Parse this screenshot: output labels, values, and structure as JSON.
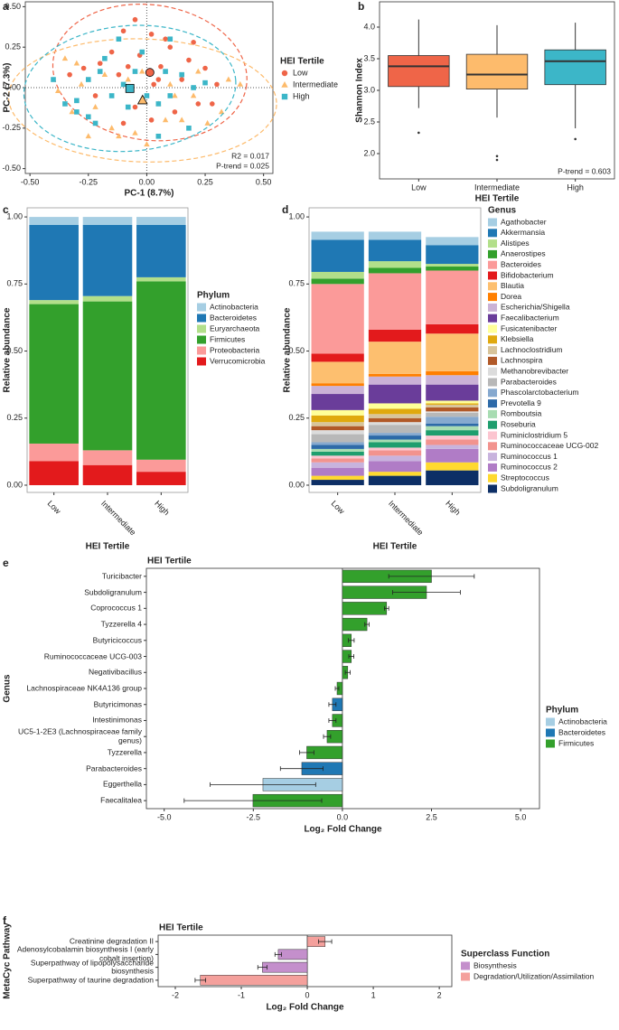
{
  "chart_data": [
    {
      "panel": "a",
      "type": "scatter",
      "xlabel": "PC-1 (8.7%)",
      "ylabel": "PC-2 (7.3%)",
      "xlim": [
        -0.52,
        0.54
      ],
      "ylim": [
        -0.53,
        0.53
      ],
      "xticks": [
        {
          "value": -0.5,
          "label": "-0.50"
        },
        {
          "value": -0.25,
          "label": "-0.25"
        },
        {
          "value": 0,
          "label": "0.00"
        },
        {
          "value": 0.25,
          "label": "0.25"
        },
        {
          "value": 0.5,
          "label": "0.50"
        }
      ],
      "yticks": [
        {
          "value": -0.5,
          "label": "-0.50"
        },
        {
          "value": -0.25,
          "label": "-0.25"
        },
        {
          "value": 0,
          "label": "0.00"
        },
        {
          "value": 0.25,
          "label": "0.25"
        },
        {
          "value": 0.5,
          "label": "0.50"
        }
      ],
      "legend_title": "HEI Tertile",
      "annotations": [
        "R2 = 0.017",
        "P-trend = 0.025"
      ],
      "series": [
        {
          "name": "Low",
          "color": "#ef6548",
          "marker": "circle",
          "x": [
            -0.1,
            -0.05,
            0.02,
            0.08,
            0.1,
            0.2,
            0.25,
            0.3,
            0.15,
            0.05,
            0.03,
            -0.03,
            -0.15,
            -0.2,
            -0.27,
            -0.33,
            -0.22,
            -0.12,
            -0.05,
            0.02,
            0.12,
            0.22,
            0.28,
            -0.1,
            0.18,
            -0.08,
            0.06
          ],
          "y": [
            0.35,
            0.42,
            0.33,
            0.3,
            0.25,
            0.28,
            0.12,
            0.02,
            0.05,
            0.05,
            0.02,
            0.2,
            0.22,
            0.15,
            0.12,
            0.08,
            -0.05,
            0.08,
            -0.12,
            -0.2,
            -0.15,
            -0.1,
            -0.1,
            -0.22,
            0.17,
            0.13,
            0.13
          ]
        },
        {
          "name": "Intermediate",
          "color": "#fdbb6c",
          "marker": "triangle",
          "x": [
            -0.35,
            -0.3,
            -0.38,
            -0.32,
            -0.25,
            -0.15,
            -0.12,
            -0.05,
            0,
            0.08,
            0.15,
            0.2,
            0.22,
            0.35,
            0.4,
            0.32,
            0.1,
            -0.02,
            -0.08,
            -0.18,
            -0.22,
            0.05,
            0.12,
            0.26,
            -0.28
          ],
          "y": [
            0.18,
            0.15,
            -0.02,
            -0.15,
            -0.3,
            -0.25,
            -0.3,
            -0.28,
            -0.35,
            -0.2,
            -0.2,
            -0.05,
            0.1,
            0.05,
            0.02,
            -0.15,
            0.02,
            0.1,
            0.05,
            0.08,
            -0.12,
            -0.1,
            -0.05,
            -0.22,
            0.02
          ]
        },
        {
          "name": "High",
          "color": "#3cb6c8",
          "marker": "square",
          "x": [
            -0.4,
            -0.35,
            -0.3,
            -0.25,
            -0.22,
            -0.18,
            -0.15,
            -0.1,
            -0.08,
            -0.05,
            0,
            0.05,
            0.1,
            0.15,
            0.2,
            0.25,
            -0.02,
            0.1,
            -0.12,
            -0.3,
            0.05,
            -0.25,
            -0.2,
            0.18,
            0.08
          ],
          "y": [
            0.05,
            -0.1,
            -0.15,
            0.05,
            -0.22,
            0.18,
            -0.05,
            0.02,
            -0.12,
            0.1,
            -0.05,
            -0.1,
            -0.05,
            0.08,
            0,
            0.03,
            0.22,
            0.3,
            0.3,
            -0.08,
            -0.3,
            -0.18,
            0.1,
            -0.25,
            0.1
          ]
        }
      ]
    },
    {
      "panel": "b",
      "type": "box",
      "xlabel": "HEI Tertile",
      "ylabel": "Shannon Index",
      "categories": [
        "Low",
        "Intermediate",
        "High"
      ],
      "colors": [
        "#ef6548",
        "#fdbb6c",
        "#3cb6c8"
      ],
      "ylim": [
        1.6,
        4.4
      ],
      "yticks": [
        {
          "value": 2,
          "label": "2.0"
        },
        2.5,
        {
          "value": 3,
          "label": "3.0"
        },
        3.5,
        {
          "value": 4,
          "label": "4.0"
        }
      ],
      "boxes": [
        {
          "min": 2.72,
          "q1": 3.06,
          "median": 3.38,
          "q3": 3.55,
          "max": 4.12,
          "outliers": [
            2.33
          ]
        },
        {
          "min": 2.57,
          "q1": 3.02,
          "median": 3.25,
          "q3": 3.57,
          "max": 4.03,
          "outliers": [
            1.96,
            1.9
          ]
        },
        {
          "min": 2.4,
          "q1": 3.09,
          "median": 3.46,
          "q3": 3.64,
          "max": 4.07,
          "outliers": [
            2.23
          ]
        }
      ],
      "annotations": [
        "P-trend = 0.603"
      ]
    },
    {
      "panel": "c",
      "type": "stacked_bar",
      "xlabel": "HEI Tertile",
      "ylabel": "Relative abundance",
      "categories": [
        "Low",
        "Intermediate",
        "High"
      ],
      "ylim": [
        -0.027,
        1.034
      ],
      "yticks": [
        {
          "value": 0,
          "label": "0.00"
        },
        {
          "value": 0.25,
          "label": "0.25"
        },
        {
          "value": 0.5,
          "label": "0.50"
        },
        {
          "value": 0.75,
          "label": "0.75"
        },
        {
          "value": 1,
          "label": "1.00"
        }
      ],
      "legend_title": "Phylum",
      "series": [
        {
          "name": "Actinobacteria",
          "color": "#a6cee3",
          "values": [
            0.03,
            0.03,
            0.03
          ]
        },
        {
          "name": "Bacteroidetes",
          "color": "#1f78b4",
          "values": [
            0.28,
            0.265,
            0.195
          ]
        },
        {
          "name": "Euryarchaeota",
          "color": "#b2df8a",
          "values": [
            0.015,
            0.02,
            0.015
          ]
        },
        {
          "name": "Firmicutes",
          "color": "#33a02c",
          "values": [
            0.52,
            0.555,
            0.665
          ]
        },
        {
          "name": "Proteobacteria",
          "color": "#fb9a99",
          "values": [
            0.065,
            0.055,
            0.045
          ]
        },
        {
          "name": "Verrucomicrobia",
          "color": "#e31a1c",
          "values": [
            0.09,
            0.075,
            0.05
          ]
        }
      ]
    },
    {
      "panel": "d",
      "type": "stacked_bar",
      "xlabel": "HEI Tertile",
      "ylabel": "Relative abundance",
      "categories": [
        "Low",
        "Intermediate",
        "High"
      ],
      "ylim": [
        -0.027,
        1.034
      ],
      "yticks": [
        {
          "value": 0,
          "label": "0.00"
        },
        {
          "value": 0.25,
          "label": "0.25"
        },
        {
          "value": 0.5,
          "label": "0.50"
        },
        {
          "value": 0.75,
          "label": "0.75"
        },
        {
          "value": 1,
          "label": "1.00"
        }
      ],
      "legend_title": "Genus",
      "series": [
        {
          "name": "Agathobacter",
          "color": "#a6cee3",
          "values": [
            0.03,
            0.03,
            0.03
          ]
        },
        {
          "name": "Akkermansia",
          "color": "#1f78b4",
          "values": [
            0.12,
            0.08,
            0.07
          ]
        },
        {
          "name": "Alistipes",
          "color": "#b2df8a",
          "values": [
            0.025,
            0.025,
            0.01
          ]
        },
        {
          "name": "Anaerostipes",
          "color": "#33a02c",
          "values": [
            0.02,
            0.02,
            0.015
          ]
        },
        {
          "name": "Bacteroides",
          "color": "#fb9a99",
          "values": [
            0.26,
            0.21,
            0.2
          ]
        },
        {
          "name": "Bifidobacterium",
          "color": "#e31a1c",
          "values": [
            0.03,
            0.045,
            0.035
          ]
        },
        {
          "name": "Blautia",
          "color": "#fdbf6f",
          "values": [
            0.08,
            0.12,
            0.14
          ]
        },
        {
          "name": "Dorea",
          "color": "#ff7f00",
          "values": [
            0.01,
            0.01,
            0.015
          ]
        },
        {
          "name": "Escherichia/Shigella",
          "color": "#cab2d6",
          "values": [
            0.03,
            0.03,
            0.035
          ]
        },
        {
          "name": "Faecalibacterium",
          "color": "#6a3d9a",
          "values": [
            0.06,
            0.07,
            0.06
          ]
        },
        {
          "name": "Fusicatenibacter",
          "color": "#ffff99",
          "values": [
            0.02,
            0.02,
            0.01
          ]
        },
        {
          "name": "Klebsiella",
          "color": "#e0a90e",
          "values": [
            0.025,
            0.02,
            0.005
          ]
        },
        {
          "name": "Lachnoclostridium",
          "color": "#d8c49a",
          "values": [
            0.015,
            0.015,
            0.01
          ]
        },
        {
          "name": "Lachnospira",
          "color": "#b15928",
          "values": [
            0.015,
            0.015,
            0.015
          ]
        },
        {
          "name": "Methanobrevibacter",
          "color": "#dcdcdc",
          "values": [
            0.015,
            0.01,
            0.005
          ]
        },
        {
          "name": "Parabacteroides",
          "color": "#b8b8b8",
          "values": [
            0.03,
            0.03,
            0.015
          ]
        },
        {
          "name": "Phascolarctobacterium",
          "color": "#86a9cf",
          "values": [
            0.01,
            0.01,
            0.025
          ]
        },
        {
          "name": "Prevotella 9",
          "color": "#2d6aa8",
          "values": [
            0.015,
            0.015,
            0.01
          ]
        },
        {
          "name": "Romboutsia",
          "color": "#a8dcb2",
          "values": [
            0.01,
            0.01,
            0.015
          ]
        },
        {
          "name": "Roseburia",
          "color": "#1f9e6e",
          "values": [
            0.015,
            0.02,
            0.02
          ]
        },
        {
          "name": "Ruminiclostridium 5",
          "color": "#fcc5d0",
          "values": [
            0.01,
            0.01,
            0.015
          ]
        },
        {
          "name": "Ruminococcaceae UCG-002",
          "color": "#f2938e",
          "values": [
            0.015,
            0.02,
            0.02
          ]
        },
        {
          "name": "Ruminococcus 1",
          "color": "#c8b3dd",
          "values": [
            0.02,
            0.02,
            0.015
          ]
        },
        {
          "name": "Ruminococcus 2",
          "color": "#b07cc6",
          "values": [
            0.03,
            0.04,
            0.05
          ]
        },
        {
          "name": "Streptococcus",
          "color": "#ffd92f",
          "values": [
            0.015,
            0.015,
            0.03
          ]
        },
        {
          "name": "Subdoligranulum",
          "color": "#0d2f66",
          "values": [
            0.02,
            0.035,
            0.055
          ]
        }
      ]
    },
    {
      "panel": "e",
      "type": "hbar",
      "title": "HEI Tertile",
      "xlabel": "Log₂ Fold Change",
      "ylabel": "Genus",
      "xlim": [
        -5.5,
        5.53
      ],
      "xticks": [
        {
          "value": -5,
          "label": "-5.0"
        },
        -2.5,
        {
          "value": 0,
          "label": "0.0"
        },
        2.5,
        {
          "value": 5,
          "label": "5.0"
        }
      ],
      "categories": [
        "Turicibacter",
        "Subdoligranulum",
        "Coprococcus 1",
        "Tyzzerella 4",
        "Butyricicoccus",
        "Ruminococcaceae UCG-003",
        "Negativibacillus",
        "Lachnospiraceae NK4A136 group",
        "Butyricimonas",
        "Intestinimonas",
        "UC5-1-2E3 (Lachnospiraceae family genus)",
        "Tyzzerella",
        "Parabacteroides",
        "Eggerthella",
        "Faecalitalea"
      ],
      "values": [
        2.5,
        2.36,
        1.24,
        0.69,
        0.25,
        0.25,
        0.15,
        -0.15,
        -0.28,
        -0.28,
        -0.43,
        -1.0,
        -1.14,
        -2.23,
        -2.51
      ],
      "errors": [
        1.2,
        0.95,
        0.06,
        0.06,
        0.08,
        0.07,
        0.07,
        0.05,
        0.1,
        0.1,
        0.1,
        0.2,
        0.6,
        1.48,
        1.93
      ],
      "groups": [
        "Firmicutes",
        "Firmicutes",
        "Firmicutes",
        "Firmicutes",
        "Firmicutes",
        "Firmicutes",
        "Firmicutes",
        "Firmicutes",
        "Bacteroidetes",
        "Firmicutes",
        "Firmicutes",
        "Firmicutes",
        "Bacteroidetes",
        "Actinobacteria",
        "Firmicutes"
      ],
      "legend_title": "Phylum",
      "legend": [
        {
          "name": "Actinobacteria",
          "color": "#a6cee3"
        },
        {
          "name": "Bacteroidetes",
          "color": "#1f78b4"
        },
        {
          "name": "Firmicutes",
          "color": "#33a02c"
        }
      ]
    },
    {
      "panel": "f",
      "type": "hbar",
      "title": "HEI Tertile",
      "xlabel": "Log₂ Fold Change",
      "ylabel": "MetaCyc Pathway",
      "xlim": [
        -2.26,
        2.19
      ],
      "xticks": [
        -2,
        -1,
        0,
        1,
        2
      ],
      "categories": [
        "Creatinine degradation II",
        "Adenosylcobalamin biosynthesis I (early cobalt insertion)",
        "Superpathway of lipopolysaccharide biosynthesis",
        "Superpathway of taurine degradation"
      ],
      "values": [
        0.27,
        -0.44,
        -0.68,
        -1.62
      ],
      "errors": [
        0.1,
        0.05,
        0.07,
        0.08
      ],
      "groups": [
        "Degradation/Utilization/Assimilation",
        "Biosynthesis",
        "Biosynthesis",
        "Degradation/Utilization/Assimilation"
      ],
      "legend_title": "Superclass Function",
      "legend": [
        {
          "name": "Biosynthesis",
          "color": "#c48fcc"
        },
        {
          "name": "Degradation/Utilization/Assimilation",
          "color": "#f4a09c"
        }
      ]
    }
  ]
}
